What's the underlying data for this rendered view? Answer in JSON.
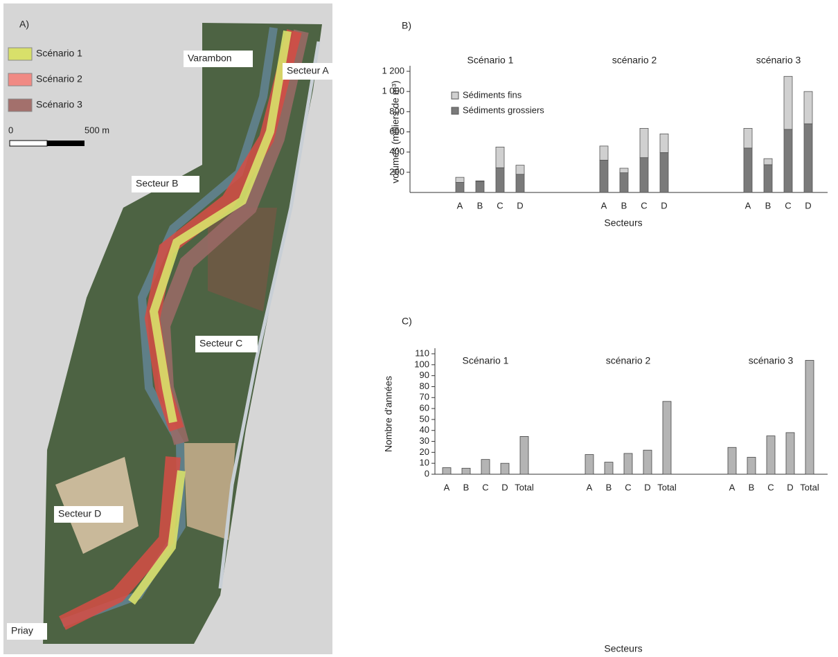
{
  "map": {
    "panel": "A)",
    "legend": [
      {
        "label": "Scénario 1",
        "color": "#d8e06a"
      },
      {
        "label": "Scénario 2",
        "color": "#f08a84"
      },
      {
        "label": "Scénario 3",
        "color": "#a3706c"
      }
    ],
    "scale": [
      "0",
      "500 m"
    ],
    "places": [
      "Varambon",
      "Secteur A",
      "Secteur B",
      "Secteur C",
      "Secteur D",
      "Priay"
    ]
  },
  "chart_data": [
    {
      "type": "stacked-bar",
      "panel": "B)",
      "ylabel": "volumes (milliers de m³)",
      "xlabel": "Secteurs",
      "groups": [
        "Scénario 1",
        "scénario 2",
        "scénario 3"
      ],
      "categories": [
        "A",
        "B",
        "C",
        "D",
        "A",
        "B",
        "C",
        "D",
        "A",
        "B",
        "C",
        "D"
      ],
      "series": [
        {
          "name": "Sédiments grossiers",
          "color": "#7a7a7a",
          "values": [
            100,
            110,
            245,
            180,
            320,
            195,
            345,
            395,
            440,
            275,
            625,
            680
          ]
        },
        {
          "name": "Sédiments fins",
          "color": "#d0d0d0",
          "values": [
            50,
            5,
            205,
            90,
            140,
            45,
            290,
            185,
            195,
            60,
            525,
            320
          ]
        }
      ],
      "ylim": [
        0,
        1200
      ],
      "yticks": [
        200,
        400,
        600,
        800,
        {
          "value": 1000,
          "label": "1 000"
        },
        {
          "value": 1200,
          "label": "1 200"
        }
      ]
    },
    {
      "type": "bar",
      "panel": "C)",
      "ylabel": "Nombre d'années",
      "xlabel": "Secteurs",
      "groups": [
        "Scénario 1",
        "scénario 2",
        "scénario 3"
      ],
      "categories": [
        "A",
        "B",
        "C",
        "D",
        "Total",
        "A",
        "B",
        "C",
        "D",
        "Total",
        "A",
        "B",
        "C",
        "D",
        "Total"
      ],
      "values": [
        6,
        5.5,
        13.5,
        10,
        34.5,
        18,
        11,
        19,
        22,
        66.5,
        24.5,
        15.5,
        35,
        38,
        104
      ],
      "color": "#b4b4b4",
      "ylim": [
        0,
        110
      ],
      "yticks": [
        0,
        10,
        20,
        30,
        40,
        50,
        60,
        70,
        80,
        90,
        100,
        110
      ]
    }
  ]
}
